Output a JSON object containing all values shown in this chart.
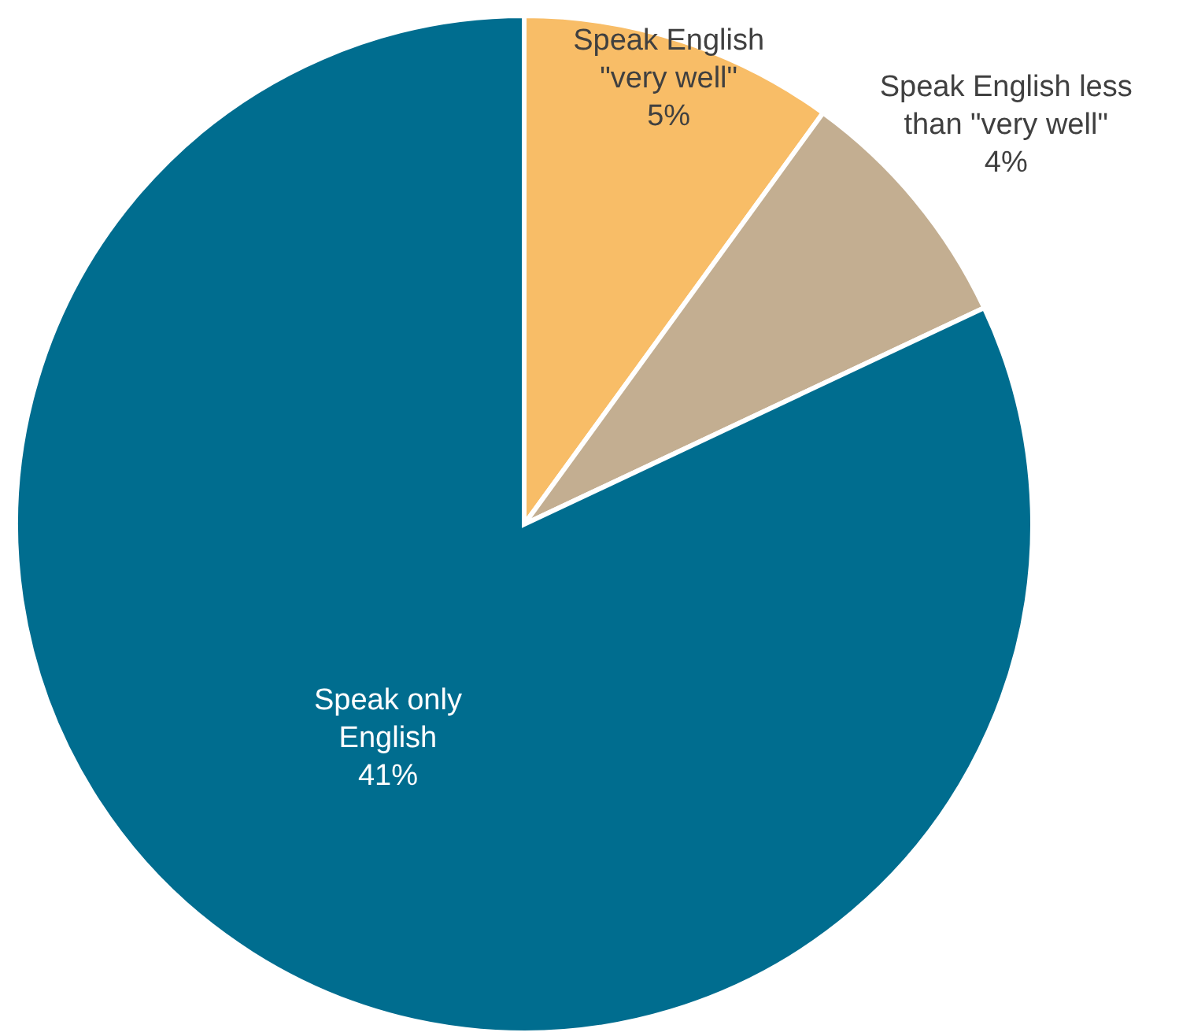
{
  "chart_data": {
    "type": "pie",
    "categories": [
      "Speak English \"very well\"",
      "Speak English less than \"very well\"",
      "Speak only English"
    ],
    "values": [
      5,
      4,
      41
    ],
    "value_labels": [
      "5%",
      "4%",
      "41%"
    ],
    "colors": [
      "#f8bd67",
      "#c3ae91",
      "#006d8f"
    ],
    "legend": false
  }
}
